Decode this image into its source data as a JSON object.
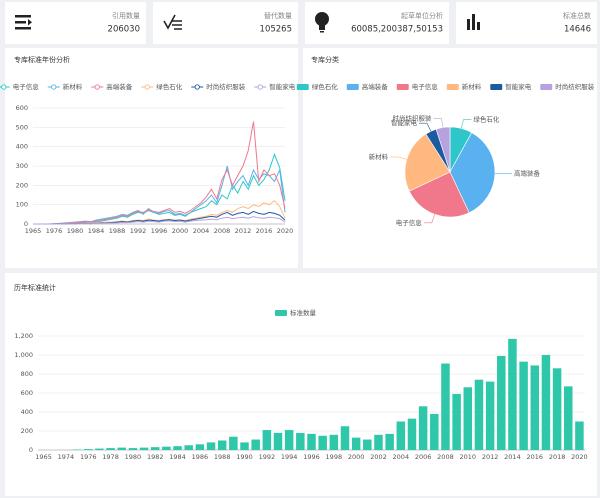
{
  "cards": [
    {
      "label": "引用数量",
      "value": 206030
    },
    {
      "label": "替代数量",
      "value": 105265
    },
    {
      "label": "起草单位分析",
      "value": "60085,200387,50153"
    },
    {
      "label": "标准总数",
      "value": 14646
    }
  ],
  "chart_data": [
    {
      "type": "line",
      "title": "专库标准年份分析",
      "categories": [
        "1965",
        null,
        null,
        null,
        "1976",
        null,
        null,
        null,
        "1980",
        null,
        null,
        null,
        "1984",
        null,
        null,
        null,
        "1988",
        null,
        null,
        null,
        "1992",
        null,
        null,
        null,
        "1996",
        null,
        null,
        null,
        "2000",
        null,
        null,
        null,
        "2004",
        null,
        null,
        null,
        "2008",
        null,
        null,
        null,
        "2012",
        null,
        null,
        null,
        "2016",
        null,
        null,
        null,
        "2020"
      ],
      "ylim": [
        0,
        600
      ],
      "yticks": [
        0,
        100,
        200,
        300,
        400,
        500,
        600
      ],
      "grid": true,
      "series": [
        {
          "name": "电子信息",
          "color": "#2ec7c9",
          "values": [
            0,
            0,
            0,
            0,
            0,
            2,
            3,
            5,
            5,
            8,
            10,
            8,
            12,
            15,
            20,
            25,
            30,
            40,
            35,
            50,
            60,
            55,
            70,
            60,
            50,
            55,
            60,
            45,
            50,
            40,
            60,
            70,
            80,
            90,
            120,
            100,
            150,
            130,
            200,
            160,
            220,
            180,
            250,
            200,
            230,
            280,
            360,
            290,
            120
          ]
        },
        {
          "name": "新材料",
          "color": "#5ab1ef",
          "values": [
            0,
            0,
            0,
            0,
            2,
            3,
            5,
            8,
            10,
            12,
            15,
            12,
            20,
            25,
            30,
            35,
            40,
            50,
            45,
            60,
            70,
            50,
            80,
            60,
            55,
            65,
            70,
            50,
            55,
            45,
            60,
            80,
            100,
            120,
            150,
            110,
            200,
            300,
            180,
            220,
            250,
            200,
            280,
            230,
            260,
            250,
            220,
            280,
            60
          ]
        },
        {
          "name": "高端装备",
          "color": "#f0788a",
          "values": [
            0,
            0,
            0,
            0,
            1,
            2,
            4,
            6,
            8,
            10,
            12,
            10,
            15,
            20,
            25,
            30,
            35,
            45,
            40,
            55,
            65,
            60,
            75,
            65,
            60,
            70,
            80,
            60,
            65,
            55,
            70,
            90,
            110,
            140,
            180,
            130,
            230,
            280,
            200,
            250,
            300,
            380,
            530,
            220,
            280,
            250,
            260,
            200,
            80
          ]
        },
        {
          "name": "绿色石化",
          "color": "#ffb980",
          "values": [
            0,
            0,
            0,
            0,
            0,
            1,
            2,
            3,
            3,
            4,
            5,
            4,
            6,
            8,
            10,
            10,
            12,
            15,
            12,
            18,
            20,
            18,
            25,
            20,
            18,
            22,
            25,
            20,
            22,
            18,
            25,
            30,
            35,
            40,
            50,
            45,
            60,
            70,
            60,
            80,
            90,
            80,
            100,
            90,
            110,
            100,
            120,
            90,
            30
          ]
        },
        {
          "name": "时尚纺织服装",
          "color": "#1e5aa0",
          "values": [
            0,
            0,
            0,
            0,
            0,
            1,
            1,
            2,
            2,
            3,
            3,
            2,
            4,
            5,
            6,
            8,
            10,
            12,
            10,
            15,
            18,
            15,
            20,
            18,
            15,
            20,
            22,
            18,
            20,
            15,
            20,
            25,
            30,
            35,
            40,
            35,
            50,
            60,
            45,
            55,
            60,
            50,
            65,
            55,
            50,
            60,
            55,
            45,
            20
          ]
        },
        {
          "name": "智能家电",
          "color": "#b6a2de",
          "values": [
            0,
            0,
            0,
            0,
            0,
            0,
            1,
            1,
            1,
            2,
            2,
            2,
            3,
            3,
            4,
            5,
            6,
            8,
            7,
            10,
            12,
            10,
            14,
            12,
            10,
            14,
            16,
            12,
            14,
            10,
            15,
            18,
            20,
            22,
            25,
            22,
            30,
            35,
            28,
            32,
            35,
            30,
            38,
            32,
            30,
            35,
            32,
            28,
            10
          ]
        }
      ]
    },
    {
      "type": "pie",
      "title": "专库分类",
      "categories": [
        "绿色石化",
        "高端装备",
        "电子信息",
        "新材料",
        "智能家电",
        "时尚纺织服装"
      ],
      "values": [
        8,
        35,
        25,
        23,
        4,
        5
      ],
      "colors": [
        "#2ec7c9",
        "#5ab1ef",
        "#f0788a",
        "#ffb980",
        "#1e5aa0",
        "#b6a2de"
      ]
    },
    {
      "type": "bar",
      "title": "历年标准统计",
      "categories": [
        "1965",
        null,
        "1974",
        null,
        "1976",
        null,
        "1978",
        null,
        "1980",
        null,
        "1982",
        null,
        "1984",
        null,
        "1986",
        null,
        "1988",
        null,
        "1990",
        null,
        "1992",
        null,
        "1994",
        null,
        "1996",
        null,
        "1998",
        null,
        "2000",
        null,
        "2002",
        null,
        "2004",
        null,
        "2006",
        null,
        "2008",
        null,
        "2010",
        null,
        "2012",
        null,
        "2014",
        null,
        "2016",
        null,
        "2018",
        null,
        "2020"
      ],
      "ylim": [
        0,
        1200
      ],
      "yticks": [
        0,
        200,
        400,
        600,
        800,
        {
          "value": 1000,
          "label": "1,000"
        },
        {
          "value": 1200,
          "label": "1,200"
        }
      ],
      "grid": true,
      "series": [
        {
          "name": "标准数量",
          "color": "#2ec7a9",
          "values": [
            0,
            0,
            0,
            5,
            10,
            15,
            20,
            25,
            20,
            25,
            30,
            35,
            40,
            50,
            60,
            80,
            100,
            140,
            80,
            110,
            210,
            180,
            210,
            180,
            170,
            150,
            160,
            250,
            130,
            110,
            160,
            170,
            300,
            330,
            460,
            380,
            910,
            590,
            660,
            740,
            720,
            990,
            1170,
            930,
            890,
            1000,
            860,
            670,
            300
          ]
        }
      ]
    }
  ]
}
